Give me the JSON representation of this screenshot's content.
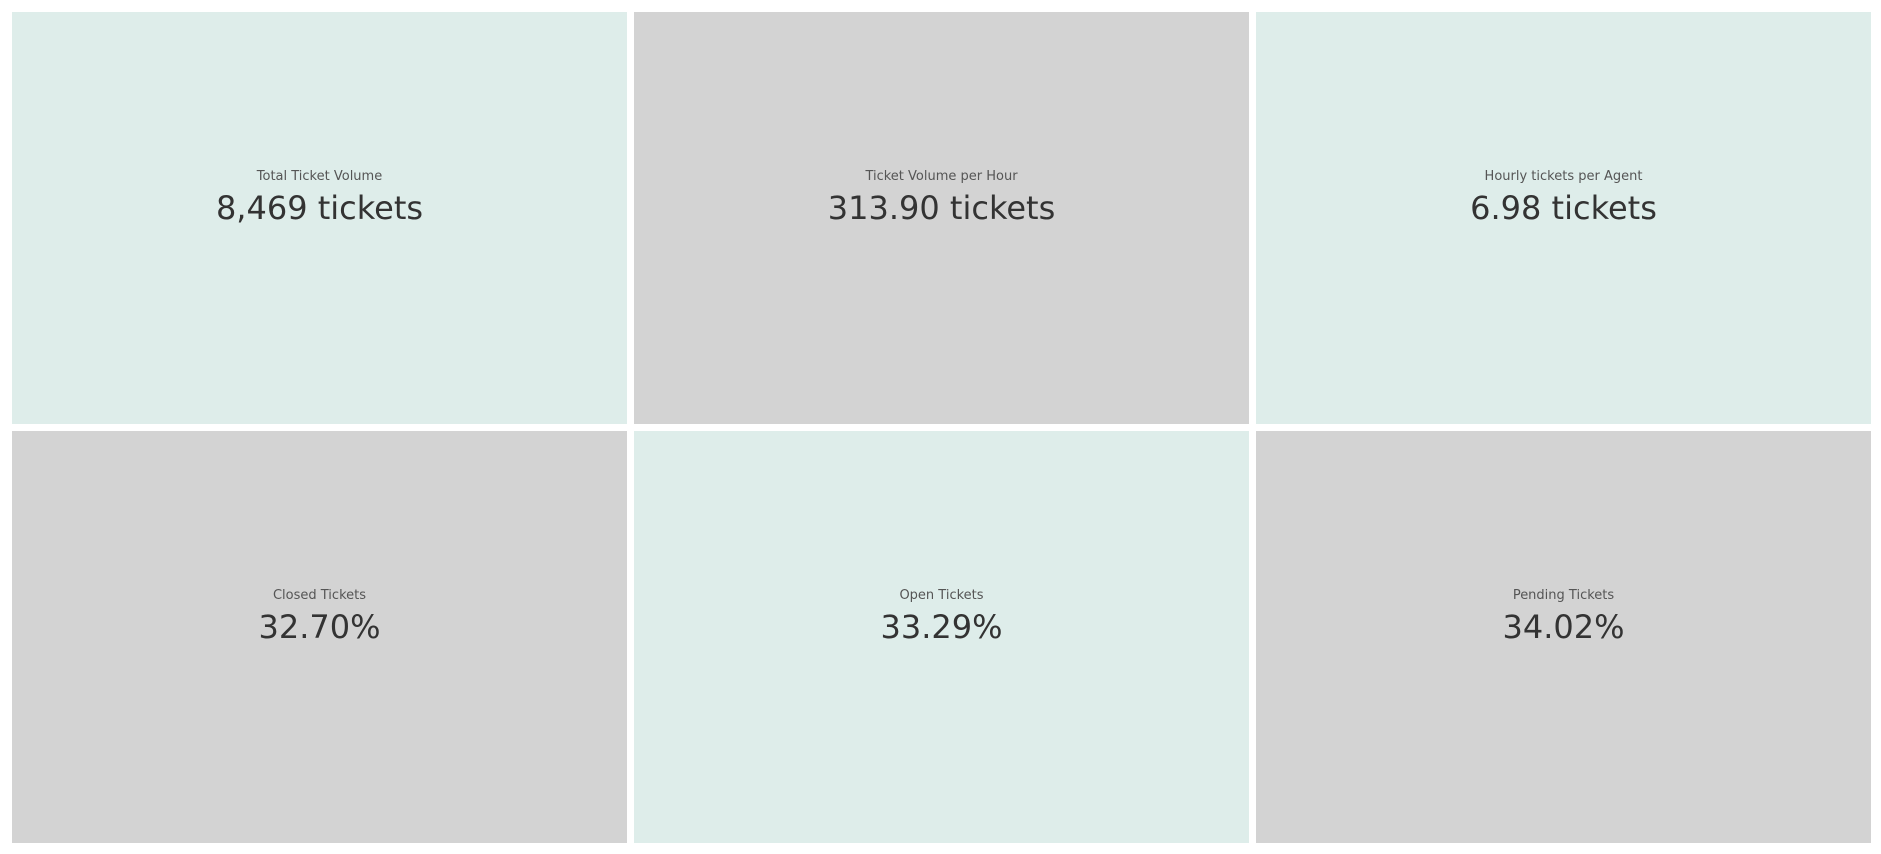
{
  "tiles": [
    {
      "label": "Total Ticket Volume",
      "value": "8,469 tickets",
      "background": "#deedea"
    },
    {
      "label": "Ticket Volume per Hour",
      "value": "313.90 tickets",
      "background": "#d3d3d3"
    },
    {
      "label": "Hourly tickets per Agent",
      "value": "6.98 tickets",
      "background": "#deedea"
    },
    {
      "label": "Closed Tickets",
      "value": "32.70%",
      "background": "#d3d3d3"
    },
    {
      "label": "Open Tickets",
      "value": "33.29%",
      "background": "#deedea"
    },
    {
      "label": "Pending Tickets",
      "value": "34.02%",
      "background": "#d3d3d3"
    }
  ],
  "colors": {
    "tint_a": "#deedea",
    "tint_b": "#d3d3d3",
    "label_text": "#555555",
    "value_text": "#333333"
  }
}
